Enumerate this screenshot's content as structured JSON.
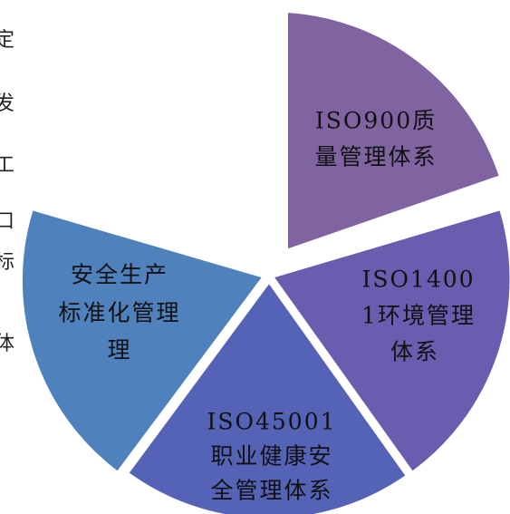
{
  "side_text": [
    "定",
    "发",
    "工",
    "口",
    "标",
    "体"
  ],
  "nodes": [
    {
      "lines": [
        "ISO900质",
        "量管理体系"
      ]
    },
    {
      "lines": [
        "ISO1400",
        "1环境管理",
        "体系"
      ]
    },
    {
      "lines": [
        "ISO45001",
        "职业健康安",
        "全管理体系"
      ]
    },
    {
      "lines": [
        "安全生产",
        "标准化管理",
        "理"
      ]
    }
  ]
}
